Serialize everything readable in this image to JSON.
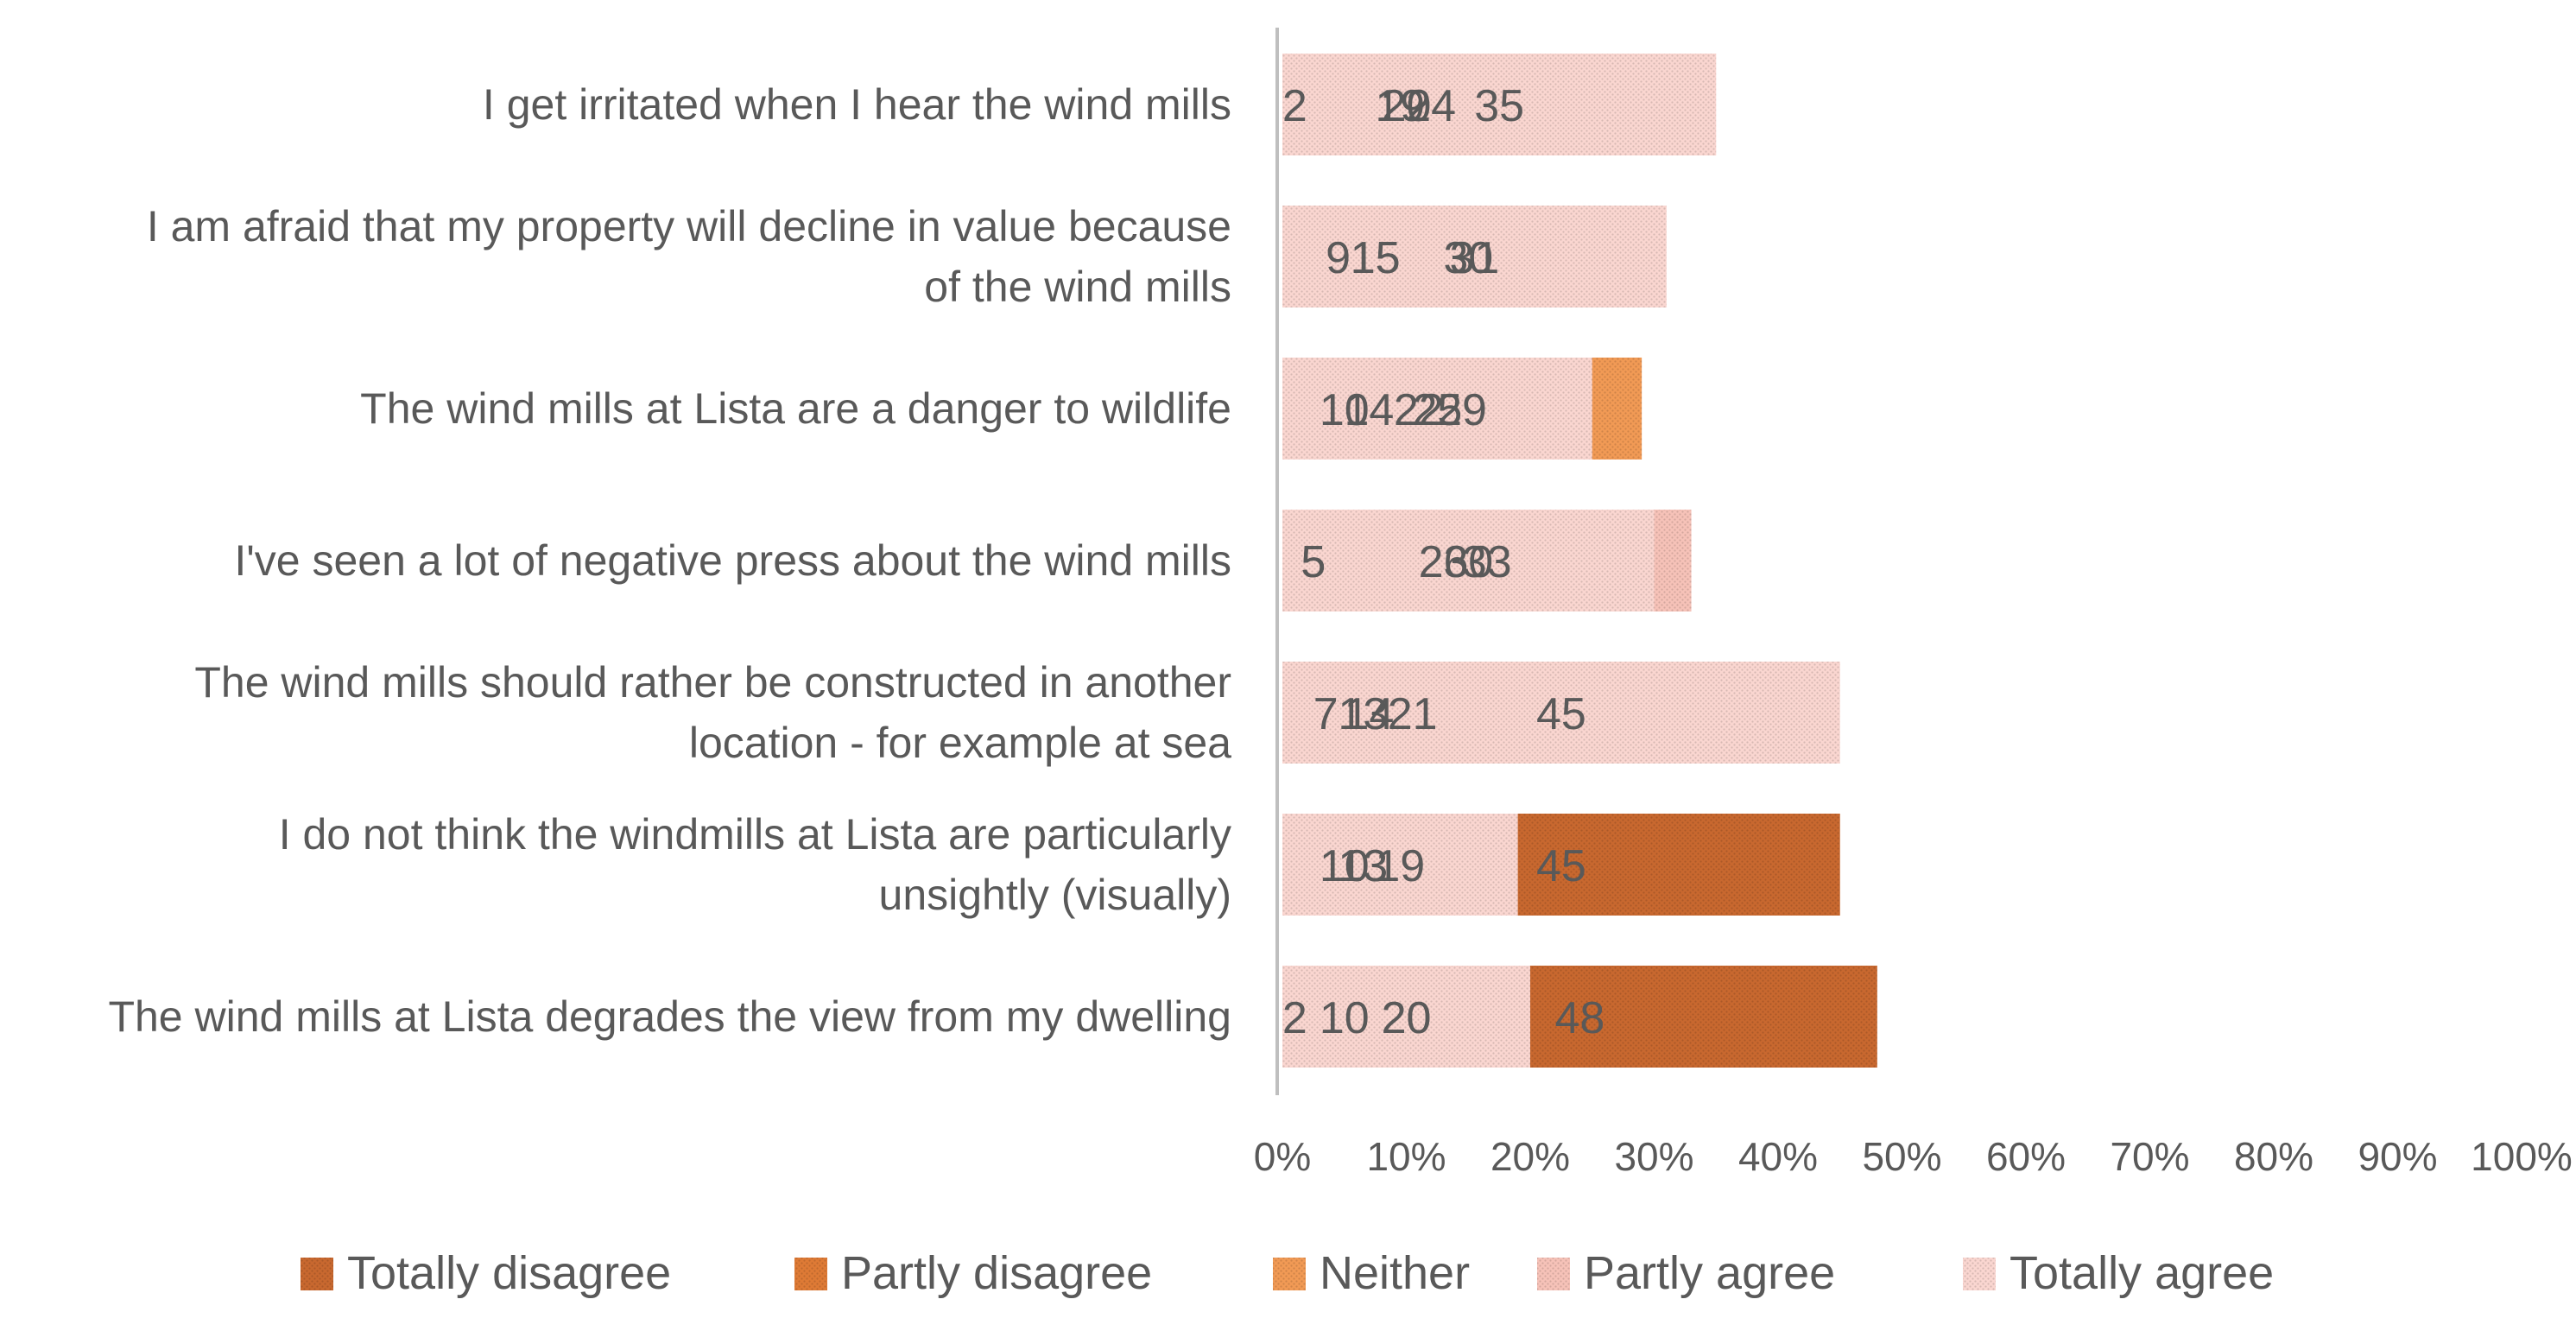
{
  "chart_data": {
    "type": "bar",
    "orientation": "horizontal",
    "stacked": "percent",
    "title": "",
    "xlabel": "",
    "ylabel": "",
    "xlim": [
      0,
      100
    ],
    "x_ticks": [
      "0%",
      "10%",
      "20%",
      "30%",
      "40%",
      "50%",
      "60%",
      "70%",
      "80%",
      "90%",
      "100%"
    ],
    "grid": false,
    "legend_position": "bottom",
    "categories": [
      "I get irritated when I hear the wind mills",
      "I am afraid that my property will decline in value because of the wind mills",
      "The wind mills at Lista are a danger to wildlife",
      "I've seen a lot of negative press about the wind mills",
      "The wind mills should rather be constructed in another location - for example at sea",
      "I do not think the windmills at Lista are particularly unsightly (visually)",
      "The wind mills at Lista degrades the view from my dwelling"
    ],
    "category_lines": [
      [
        "I get irritated when I hear the wind mills"
      ],
      [
        "I am afraid that my property will decline in value because",
        "of the wind mills"
      ],
      [
        "The wind mills at Lista are a danger to wildlife"
      ],
      [
        "I've seen a lot of negative press about the wind mills"
      ],
      [
        "The wind mills should rather be constructed in another",
        "location - for example at sea"
      ],
      [
        "I do not think the windmills at Lista are particularly",
        "unsightly (visually)"
      ],
      [
        "The wind mills at Lista degrades the view from my dwelling"
      ]
    ],
    "series": [
      {
        "name": "Totally disagree",
        "color": "#c8682f",
        "values": [
          24,
          30,
          14,
          5,
          13,
          45,
          48
        ]
      },
      {
        "name": "Partly disagree",
        "color": "#de7a35",
        "values": [
          2,
          9,
          10,
          5,
          7,
          13,
          2
        ]
      },
      {
        "name": "Neither",
        "color": "#f19a55",
        "values": [
          20,
          15,
          29,
          26,
          14,
          10,
          20
        ]
      },
      {
        "name": "Partly agree",
        "color": "#f6c2b8",
        "values": [
          19,
          15,
          22,
          33,
          21,
          13,
          10
        ]
      },
      {
        "name": "Totally agree",
        "color": "#fad6d0",
        "values": [
          35,
          31,
          25,
          30,
          45,
          19,
          20
        ]
      }
    ]
  }
}
